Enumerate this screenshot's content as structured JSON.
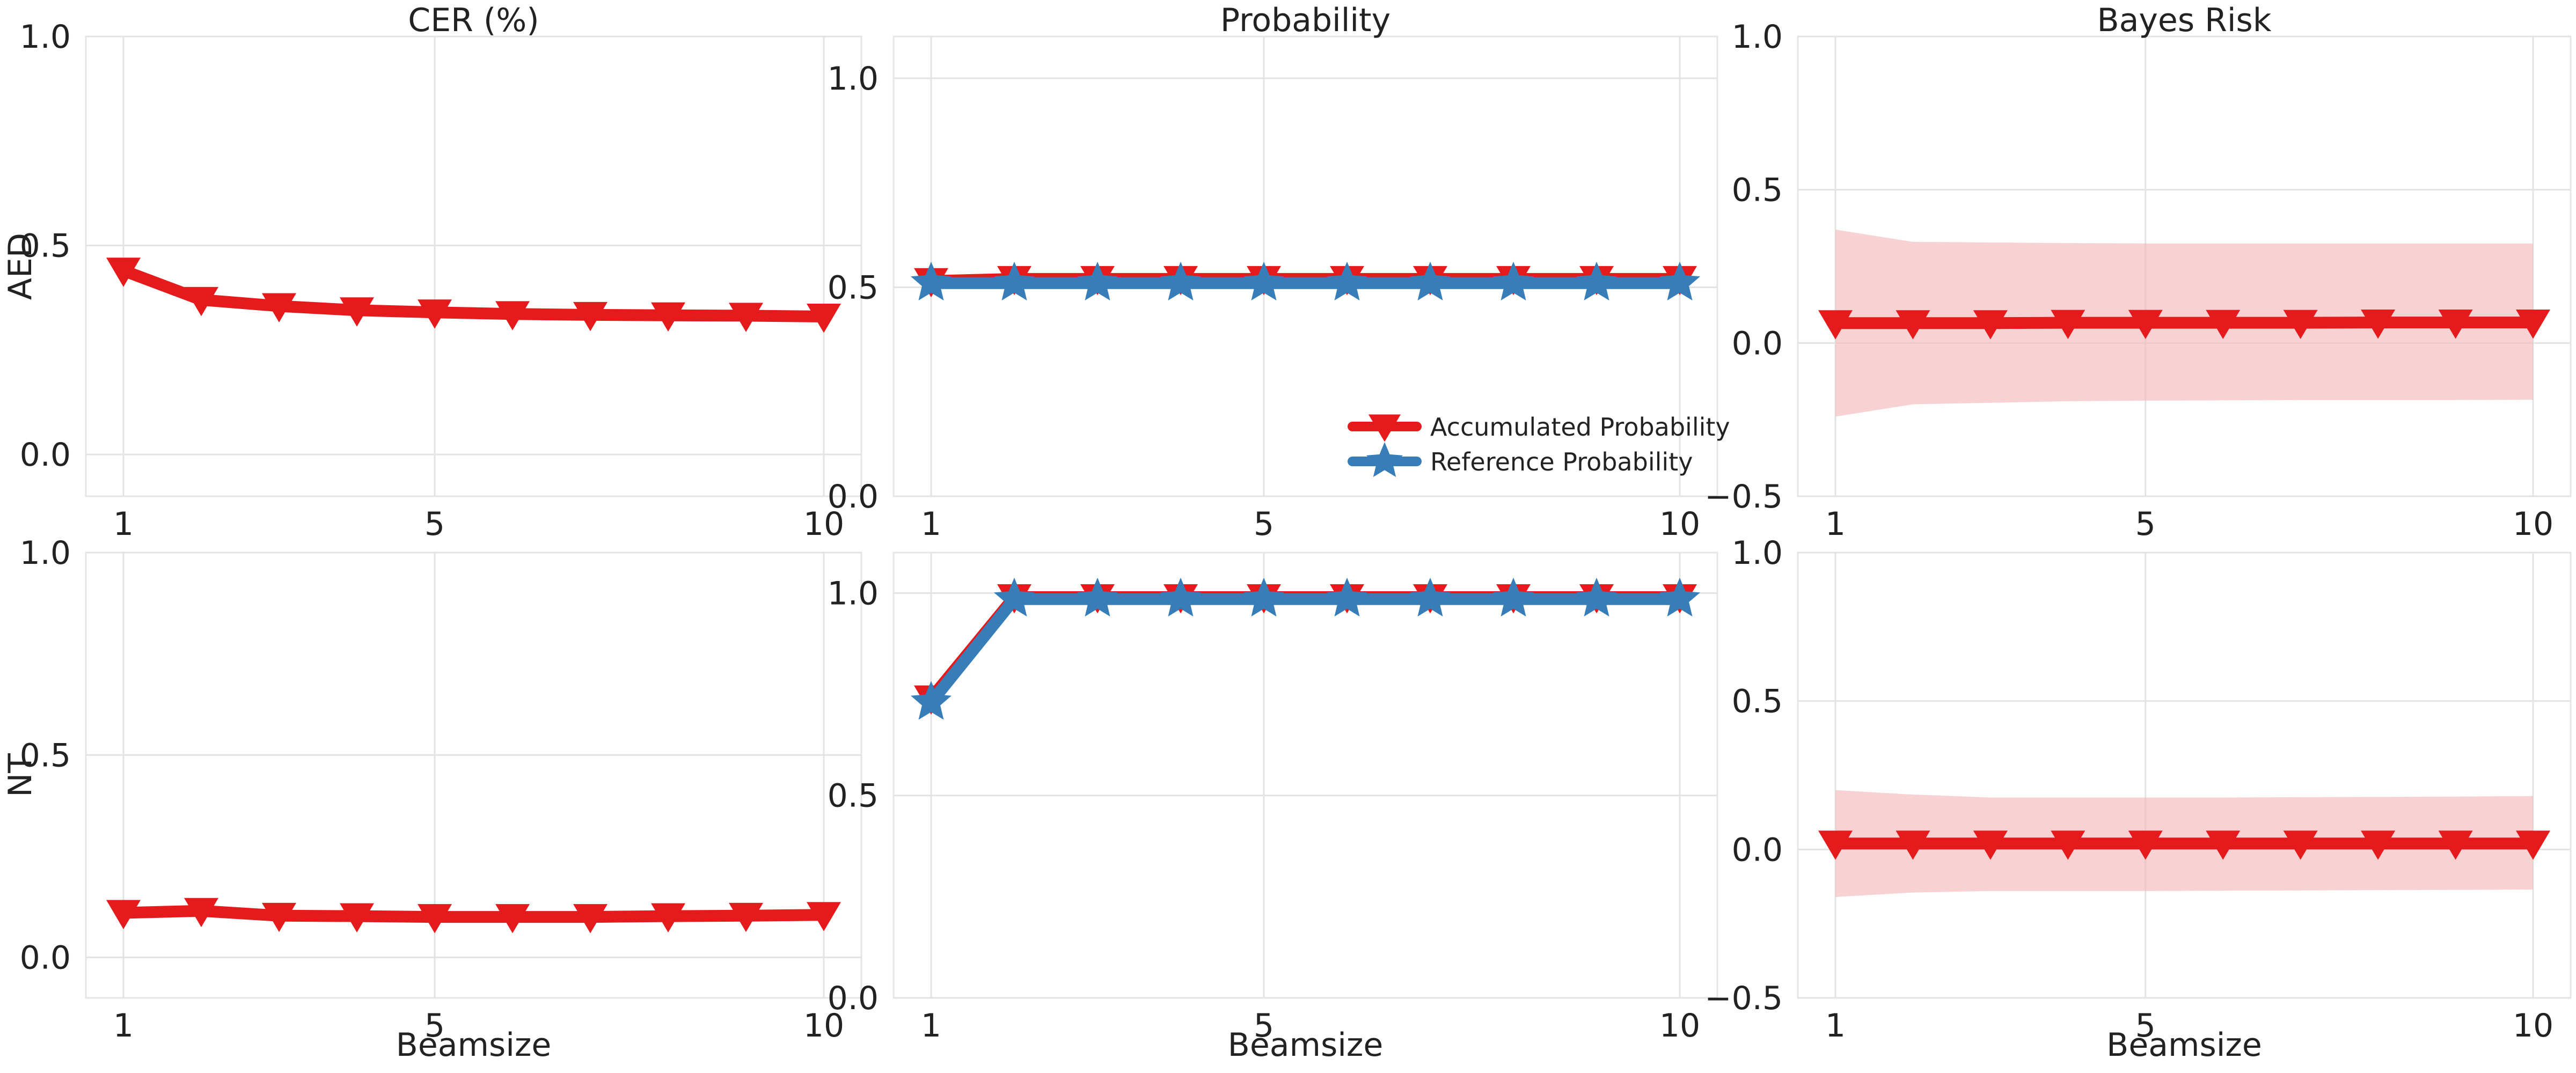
{
  "chart_data": {
    "type": "line",
    "column_titles": [
      "CER (%)",
      "Probability",
      "Bayes Risk"
    ],
    "row_labels": [
      "AED",
      "NT"
    ],
    "xlabel": "Beamsize",
    "x": [
      1,
      2,
      3,
      4,
      5,
      6,
      7,
      8,
      9,
      10
    ],
    "xticks": [
      "1",
      "5",
      "10"
    ],
    "colors": {
      "red": "#e41a1c",
      "blue": "#377eb8",
      "band": "#f4b9bb"
    },
    "legend": {
      "location": "lower-right",
      "entries": [
        {
          "label": "Accumulated Probability",
          "marker": "triangle-down",
          "color": "#e41a1c"
        },
        {
          "label": "Reference Probability",
          "marker": "star",
          "color": "#377eb8"
        }
      ]
    },
    "panels": [
      {
        "row": "AED",
        "column": "CER (%)",
        "ylim": [
          -0.1,
          1.0
        ],
        "yticks": [
          "0.0",
          "0.5",
          "1.0"
        ],
        "yticks_values": [
          0.0,
          0.5,
          1.0
        ],
        "series": [
          {
            "name": "CER",
            "marker": "triangle-down",
            "color": "#e41a1c",
            "values": [
              0.44,
              0.37,
              0.355,
              0.345,
              0.34,
              0.336,
              0.334,
              0.333,
              0.332,
              0.33
            ]
          }
        ]
      },
      {
        "row": "AED",
        "column": "Probability",
        "ylim": [
          0.0,
          1.1
        ],
        "yticks": [
          "0.0",
          "0.5",
          "1.0"
        ],
        "yticks_values": [
          0.0,
          0.5,
          1.0
        ],
        "show_legend": true,
        "series": [
          {
            "name": "Accumulated Probability",
            "marker": "triangle-down",
            "color": "#e41a1c",
            "values": [
              0.515,
              0.52,
              0.52,
              0.52,
              0.52,
              0.52,
              0.52,
              0.52,
              0.52,
              0.52
            ]
          },
          {
            "name": "Reference Probability",
            "marker": "star",
            "color": "#377eb8",
            "values": [
              0.51,
              0.51,
              0.51,
              0.51,
              0.51,
              0.51,
              0.51,
              0.51,
              0.51,
              0.51
            ]
          }
        ]
      },
      {
        "row": "AED",
        "column": "Bayes Risk",
        "ylim": [
          -0.5,
          1.0
        ],
        "yticks": [
          "−0.5",
          "0.0",
          "0.5",
          "1.0"
        ],
        "yticks_values": [
          -0.5,
          0.0,
          0.5,
          1.0
        ],
        "band": {
          "upper": [
            0.37,
            0.33,
            0.328,
            0.326,
            0.325,
            0.325,
            0.325,
            0.325,
            0.325,
            0.325
          ],
          "lower": [
            -0.24,
            -0.2,
            -0.195,
            -0.19,
            -0.188,
            -0.187,
            -0.186,
            -0.186,
            -0.186,
            -0.185
          ]
        },
        "series": [
          {
            "name": "Bayes Risk",
            "marker": "triangle-down",
            "color": "#e41a1c",
            "values": [
              0.065,
              0.065,
              0.065,
              0.066,
              0.066,
              0.066,
              0.066,
              0.067,
              0.067,
              0.067
            ]
          }
        ]
      },
      {
        "row": "NT",
        "column": "CER (%)",
        "ylim": [
          -0.1,
          1.0
        ],
        "yticks": [
          "0.0",
          "0.5",
          "1.0"
        ],
        "yticks_values": [
          0.0,
          0.5,
          1.0
        ],
        "series": [
          {
            "name": "CER",
            "marker": "triangle-down",
            "color": "#e41a1c",
            "values": [
              0.11,
              0.115,
              0.103,
              0.102,
              0.1,
              0.1,
              0.1,
              0.102,
              0.103,
              0.105
            ]
          }
        ]
      },
      {
        "row": "NT",
        "column": "Probability",
        "ylim": [
          0.0,
          1.1
        ],
        "yticks": [
          "0.0",
          "0.5",
          "1.0"
        ],
        "yticks_values": [
          0.0,
          0.5,
          1.0
        ],
        "series": [
          {
            "name": "Accumulated Probability",
            "marker": "triangle-down",
            "color": "#e41a1c",
            "values": [
              0.74,
              0.99,
              0.99,
              0.99,
              0.99,
              0.99,
              0.99,
              0.99,
              0.99,
              0.99
            ]
          },
          {
            "name": "Reference Probability",
            "marker": "star",
            "color": "#377eb8",
            "values": [
              0.73,
              0.985,
              0.985,
              0.985,
              0.985,
              0.985,
              0.985,
              0.985,
              0.985,
              0.985
            ]
          }
        ]
      },
      {
        "row": "NT",
        "column": "Bayes Risk",
        "ylim": [
          -0.5,
          1.0
        ],
        "yticks": [
          "−0.5",
          "0.0",
          "0.5",
          "1.0"
        ],
        "yticks_values": [
          -0.5,
          0.0,
          0.5,
          1.0
        ],
        "band": {
          "upper": [
            0.2,
            0.185,
            0.175,
            0.175,
            0.175,
            0.175,
            0.176,
            0.177,
            0.178,
            0.18
          ],
          "lower": [
            -0.16,
            -0.145,
            -0.14,
            -0.14,
            -0.14,
            -0.139,
            -0.138,
            -0.137,
            -0.136,
            -0.135
          ]
        },
        "series": [
          {
            "name": "Bayes Risk",
            "marker": "triangle-down",
            "color": "#e41a1c",
            "values": [
              0.02,
              0.02,
              0.02,
              0.02,
              0.02,
              0.02,
              0.02,
              0.02,
              0.02,
              0.02
            ]
          }
        ]
      }
    ]
  }
}
